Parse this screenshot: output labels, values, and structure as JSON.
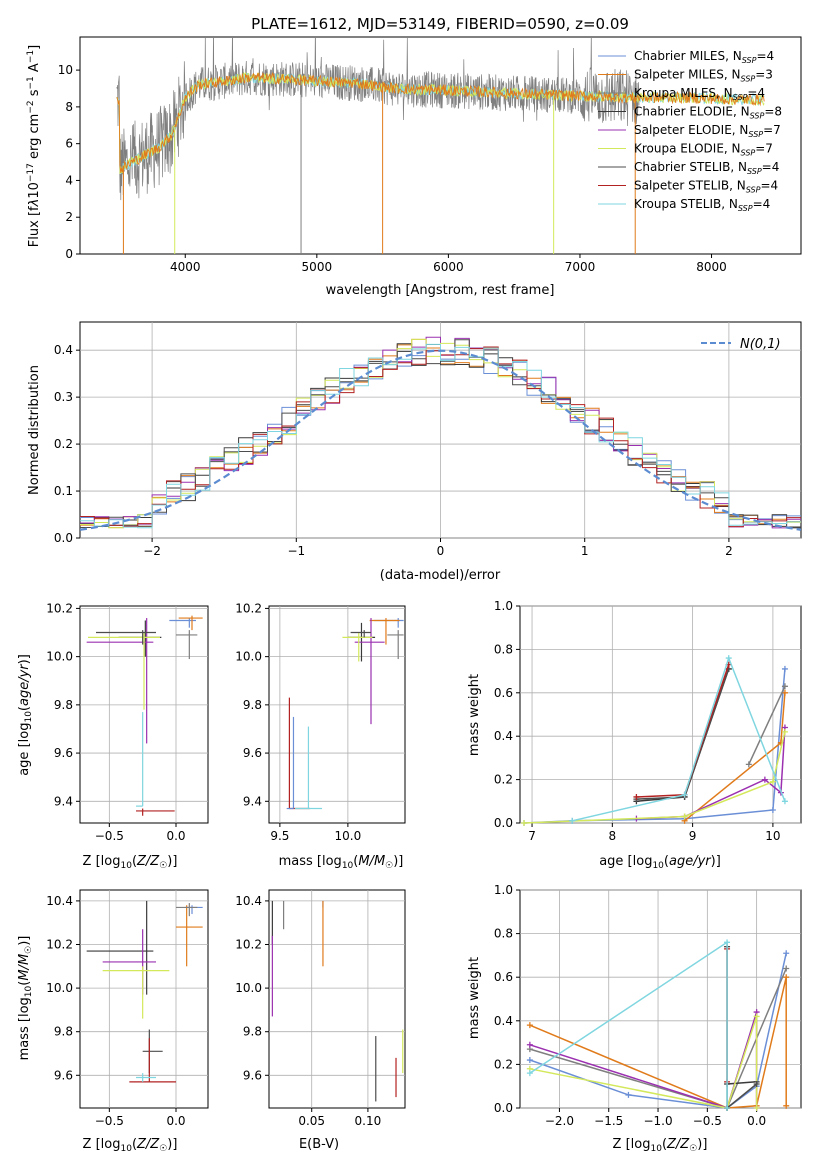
{
  "figure": {
    "title": "PLATE=1612, MJD=53149, FIBERID=0590, z=0.09",
    "series_names": [
      "Chabrier MILES",
      "Salpeter MILES",
      "Kroupa MILES",
      "Chabrier ELODIE",
      "Salpeter ELODIE",
      "Kroupa ELODIE",
      "Chabrier STELIB",
      "Salpeter STELIB",
      "Kroupa STELIB"
    ],
    "series_colors": [
      "#6b8fd6",
      "#e07b1b",
      "#7f7f7f",
      "#3a3a3a",
      "#9b30b0",
      "#d4e85b",
      "#4d4d4d",
      "#b22222",
      "#7fd6e0"
    ]
  },
  "chart_data": [
    {
      "id": "spectrum",
      "type": "line",
      "xlabel": "wavelength [Angstrom, rest frame]",
      "ylabel": "Flux [f_λ 10^-17 erg cm^-2 s^-1 A^-1]",
      "xlim": [
        3200,
        8680
      ],
      "ylim": [
        0,
        11.8
      ],
      "xticks": [
        4000,
        5000,
        6000,
        7000,
        8000
      ],
      "yticks": [
        0,
        2,
        4,
        6,
        8,
        10
      ],
      "legend_position": "top-right",
      "legend": [
        "Chabrier MILES, N_SSP=4",
        "Salpeter MILES, N_SSP=3",
        "Kroupa MILES, N_SSP=4",
        "Chabrier ELODIE, N_SSP=8",
        "Salpeter ELODIE, N_SSP=7",
        "Kroupa ELODIE, N_SSP=7",
        "Chabrier STELIB, N_SSP=4",
        "Salpeter STELIB, N_SSP=4",
        "Kroupa STELIB, N_SSP=4"
      ],
      "continuum_points": [
        [
          3500,
          4.6
        ],
        [
          3600,
          5.0
        ],
        [
          3700,
          5.4
        ],
        [
          3800,
          5.8
        ],
        [
          3900,
          6.5
        ],
        [
          4000,
          8.5
        ],
        [
          4100,
          9.2
        ],
        [
          4300,
          9.4
        ],
        [
          4500,
          9.6
        ],
        [
          4800,
          9.5
        ],
        [
          5000,
          9.4
        ],
        [
          5300,
          9.3
        ],
        [
          5600,
          9.0
        ],
        [
          6000,
          8.9
        ],
        [
          6300,
          8.8
        ],
        [
          6600,
          8.7
        ],
        [
          7000,
          8.6
        ],
        [
          7400,
          8.5
        ],
        [
          7800,
          8.5
        ],
        [
          8200,
          8.4
        ],
        [
          8400,
          8.4
        ]
      ]
    },
    {
      "id": "residuals",
      "type": "area",
      "xlabel": "(data-model)/error",
      "ylabel": "Normed distribution",
      "xlim": [
        -2.5,
        2.5
      ],
      "ylim": [
        0,
        0.46
      ],
      "xticks": [
        -2,
        -1,
        0,
        1,
        2
      ],
      "yticks": [
        0.0,
        0.1,
        0.2,
        0.3,
        0.4
      ],
      "legend_position": "top-right",
      "legend": [
        "N(0,1)"
      ],
      "bin_width": 0.1,
      "bin_start": -2.5
    },
    {
      "id": "age-vs-Z",
      "type": "scatter",
      "xlabel": "Z [log10(Z/Z☉)]",
      "ylabel": "age [log10(age/yr)]",
      "xlim": [
        -0.72,
        0.24
      ],
      "ylim": [
        9.31,
        10.21
      ],
      "xticks": [
        -0.5,
        0.0
      ],
      "yticks": [
        9.4,
        9.6,
        9.8,
        10.0,
        10.2
      ],
      "points": [
        {
          "x": 0.1,
          "y": 10.15,
          "xerr": [
            0.15,
            0.05
          ],
          "yerr": [
            0.03,
            0.01
          ]
        },
        {
          "x": 0.12,
          "y": 10.16,
          "xerr": [
            0.1,
            0.08
          ],
          "yerr": [
            0.05,
            0.01
          ]
        },
        {
          "x": 0.1,
          "y": 10.09,
          "xerr": [
            0.1,
            0.06
          ],
          "yerr": [
            0.1,
            0.02
          ]
        },
        {
          "x": -0.23,
          "y": 10.08,
          "xerr": [
            0.2,
            0.12
          ],
          "yerr": [
            0.08,
            0.07
          ]
        },
        {
          "x": -0.22,
          "y": 10.06,
          "xerr": [
            0.45,
            0.05
          ],
          "yerr": [
            0.42,
            0.1
          ]
        },
        {
          "x": -0.24,
          "y": 10.08,
          "xerr": [
            0.42,
            0.12
          ],
          "yerr": [
            0.3,
            0.02
          ]
        },
        {
          "x": -0.25,
          "y": 10.1,
          "xerr": [
            0.35,
            0.1
          ],
          "yerr": [
            0.05,
            0.01
          ]
        },
        {
          "x": -0.25,
          "y": 9.36,
          "xerr": [
            0.05,
            0.24
          ],
          "yerr": [
            0.02,
            0.01
          ]
        },
        {
          "x": -0.25,
          "y": 9.38,
          "xerr": [
            0.05,
            0.0
          ],
          "yerr": [
            0.0,
            0.39
          ]
        }
      ]
    },
    {
      "id": "age-vs-mass",
      "type": "scatter",
      "xlabel": "mass [log10(M/M☉)]",
      "ylabel": "",
      "xlim": [
        9.42,
        10.42
      ],
      "ylim": [
        9.31,
        10.21
      ],
      "xticks": [
        9.5,
        10.0
      ],
      "yticks": [
        9.4,
        9.6,
        9.8,
        10.0,
        10.2
      ],
      "points": [
        {
          "x": 10.37,
          "y": 10.15,
          "xerr": [
            0.18,
            0.04
          ],
          "yerr": [
            0.03,
            0.01
          ]
        },
        {
          "x": 10.28,
          "y": 10.15,
          "xerr": [
            0.12,
            0.1
          ],
          "yerr": [
            0.1,
            0.01
          ]
        },
        {
          "x": 10.37,
          "y": 10.09,
          "xerr": [
            0.08,
            0.04
          ],
          "yerr": [
            0.1,
            0.02
          ]
        },
        {
          "x": 10.1,
          "y": 10.08,
          "xerr": [
            0.1,
            0.1
          ],
          "yerr": [
            0.1,
            0.06
          ]
        },
        {
          "x": 10.17,
          "y": 10.06,
          "xerr": [
            0.12,
            0.1
          ],
          "yerr": [
            0.34,
            0.1
          ]
        },
        {
          "x": 10.08,
          "y": 10.08,
          "xerr": [
            0.12,
            0.1
          ],
          "yerr": [
            0.1,
            0.02
          ]
        },
        {
          "x": 10.12,
          "y": 10.1,
          "xerr": [
            0.1,
            0.05
          ],
          "yerr": [
            0.02,
            0.01
          ]
        },
        {
          "x": 9.57,
          "y": 9.37,
          "xerr": [
            0.0,
            0.15
          ],
          "yerr": [
            0.0,
            0.46
          ]
        },
        {
          "x": 9.71,
          "y": 9.37,
          "xerr": [
            0.1,
            0.1
          ],
          "yerr": [
            0.0,
            0.34
          ]
        },
        {
          "x": 9.6,
          "y": 9.37,
          "xerr": [
            0.05,
            0.0
          ],
          "yerr": [
            0.0,
            0.38
          ]
        }
      ]
    },
    {
      "id": "massweight-vs-age",
      "type": "line",
      "xlabel": "age [log10(age/yr)]",
      "ylabel": "mass weight",
      "xlim": [
        6.85,
        10.35
      ],
      "ylim": [
        0,
        1.0
      ],
      "xticks": [
        7,
        8,
        9,
        10
      ],
      "yticks": [
        0.0,
        0.2,
        0.4,
        0.6,
        0.8,
        1.0
      ],
      "series": [
        {
          "name": "Chabrier MILES",
          "points": [
            [
              6.9,
              0.0
            ],
            [
              7.5,
              0.01
            ],
            [
              8.9,
              0.02
            ],
            [
              10.0,
              0.06
            ],
            [
              10.15,
              0.71
            ]
          ]
        },
        {
          "name": "Salpeter MILES",
          "points": [
            [
              8.9,
              0.01
            ],
            [
              10.1,
              0.37
            ],
            [
              10.15,
              0.6
            ]
          ]
        },
        {
          "name": "Kroupa MILES",
          "points": [
            [
              9.7,
              0.27
            ],
            [
              10.15,
              0.63
            ]
          ]
        },
        {
          "name": "Chabrier ELODIE",
          "points": [
            [
              8.3,
              0.1
            ],
            [
              8.9,
              0.12
            ],
            [
              9.45,
              0.71
            ]
          ]
        },
        {
          "name": "Salpeter ELODIE",
          "points": [
            [
              8.3,
              0.02
            ],
            [
              8.9,
              0.03
            ],
            [
              9.9,
              0.2
            ],
            [
              10.1,
              0.14
            ],
            [
              10.15,
              0.44
            ]
          ]
        },
        {
          "name": "Kroupa ELODIE",
          "points": [
            [
              6.9,
              0.0
            ],
            [
              8.9,
              0.03
            ],
            [
              10.0,
              0.19
            ],
            [
              10.15,
              0.42
            ]
          ]
        },
        {
          "name": "Chabrier STELIB",
          "points": [
            [
              8.3,
              0.11
            ],
            [
              8.9,
              0.12
            ],
            [
              9.45,
              0.71
            ]
          ]
        },
        {
          "name": "Salpeter STELIB",
          "points": [
            [
              8.3,
              0.12
            ],
            [
              8.9,
              0.13
            ],
            [
              9.45,
              0.73
            ]
          ]
        },
        {
          "name": "Kroupa STELIB",
          "points": [
            [
              7.5,
              0.01
            ],
            [
              8.9,
              0.13
            ],
            [
              9.45,
              0.76
            ],
            [
              10.15,
              0.1
            ]
          ]
        }
      ]
    },
    {
      "id": "mass-vs-Z",
      "type": "scatter",
      "xlabel": "Z [log10(Z/Z☉)]",
      "ylabel": "mass [log10(M/M☉)]",
      "xlim": [
        -0.72,
        0.24
      ],
      "ylim": [
        9.45,
        10.45
      ],
      "xticks": [
        -0.5,
        0.0
      ],
      "yticks": [
        9.6,
        9.8,
        10.0,
        10.2,
        10.4
      ],
      "points": [
        {
          "x": 0.12,
          "y": 10.37,
          "xerr": [
            0.05,
            0.08
          ],
          "yerr": [
            0.03,
            0.01
          ]
        },
        {
          "x": 0.08,
          "y": 10.28,
          "xerr": [
            0.08,
            0.12
          ],
          "yerr": [
            0.18,
            0.1
          ]
        },
        {
          "x": 0.1,
          "y": 10.37,
          "xerr": [
            0.1,
            0.06
          ],
          "yerr": [
            0.04,
            0.02
          ]
        },
        {
          "x": -0.22,
          "y": 10.17,
          "xerr": [
            0.45,
            0.05
          ],
          "yerr": [
            0.2,
            0.23
          ]
        },
        {
          "x": -0.25,
          "y": 10.12,
          "xerr": [
            0.3,
            0.1
          ],
          "yerr": [
            0.15,
            0.15
          ]
        },
        {
          "x": -0.25,
          "y": 10.08,
          "xerr": [
            0.3,
            0.2
          ],
          "yerr": [
            0.22,
            0.02
          ]
        },
        {
          "x": -0.2,
          "y": 9.71,
          "xerr": [
            0.05,
            0.1
          ],
          "yerr": [
            0.1,
            0.1
          ]
        },
        {
          "x": -0.2,
          "y": 9.57,
          "xerr": [
            0.15,
            0.2
          ],
          "yerr": [
            0.0,
            0.2
          ]
        },
        {
          "x": -0.25,
          "y": 9.59,
          "xerr": [
            0.05,
            0.1
          ],
          "yerr": [
            0.02,
            0.02
          ]
        }
      ]
    },
    {
      "id": "mass-vs-EBV",
      "type": "scatter",
      "xlabel": "E(B-V)",
      "ylabel": "",
      "xlim": [
        0.012,
        0.133
      ],
      "ylim": [
        9.45,
        10.45
      ],
      "xticks": [
        0.05,
        0.1
      ],
      "yticks": [
        9.6,
        9.8,
        10.0,
        10.2,
        10.4
      ],
      "points": [
        {
          "x": 0.06,
          "y": 10.37,
          "yerr": [
            0.0,
            0.03
          ]
        },
        {
          "x": 0.06,
          "y": 10.28,
          "yerr": [
            0.18,
            0.12
          ]
        },
        {
          "x": 0.025,
          "y": 10.37,
          "yerr": [
            0.1,
            0.03
          ]
        },
        {
          "x": 0.015,
          "y": 10.3,
          "yerr": [
            0.1,
            0.1
          ]
        },
        {
          "x": 0.015,
          "y": 10.1,
          "yerr": [
            0.23,
            0.14
          ]
        },
        {
          "x": 0.131,
          "y": 9.71,
          "yerr": [
            0.1,
            0.1
          ]
        },
        {
          "x": 0.107,
          "y": 9.63,
          "yerr": [
            0.15,
            0.15
          ]
        },
        {
          "x": 0.125,
          "y": 9.6,
          "yerr": [
            0.1,
            0.08
          ]
        }
      ]
    },
    {
      "id": "massweight-vs-Z",
      "type": "line",
      "xlabel": "Z [log10(Z/Z☉)]",
      "ylabel": "mass weight",
      "xlim": [
        -2.4,
        0.45
      ],
      "ylim": [
        0,
        1.0
      ],
      "xticks": [
        -2.0,
        -1.5,
        -1.0,
        -0.5,
        0.0
      ],
      "yticks": [
        0.0,
        0.2,
        0.4,
        0.6,
        0.8,
        1.0
      ],
      "series": [
        {
          "name": "Chabrier MILES",
          "points": [
            [
              -2.3,
              0.22
            ],
            [
              -1.3,
              0.06
            ],
            [
              -0.3,
              0.0
            ],
            [
              0.0,
              0.1
            ],
            [
              0.3,
              0.71
            ]
          ]
        },
        {
          "name": "Salpeter MILES",
          "points": [
            [
              -2.3,
              0.38
            ],
            [
              -0.3,
              0.0
            ],
            [
              0.0,
              0.01
            ],
            [
              0.3,
              0.6
            ],
            [
              0.3,
              0.01
            ]
          ]
        },
        {
          "name": "Kroupa MILES",
          "points": [
            [
              -2.3,
              0.27
            ],
            [
              -0.3,
              0.0
            ],
            [
              0.3,
              0.64
            ]
          ]
        },
        {
          "name": "Chabrier ELODIE",
          "points": [
            [
              -0.3,
              0.11
            ],
            [
              0.0,
              0.12
            ]
          ]
        },
        {
          "name": "Salpeter ELODIE",
          "points": [
            [
              -2.3,
              0.29
            ],
            [
              -0.3,
              0.0
            ],
            [
              0.0,
              0.44
            ],
            [
              0.0,
              0.0
            ]
          ]
        },
        {
          "name": "Kroupa ELODIE",
          "points": [
            [
              -2.3,
              0.18
            ],
            [
              -0.3,
              0.0
            ],
            [
              0.0,
              0.42
            ],
            [
              0.0,
              0.0
            ]
          ]
        },
        {
          "name": "Chabrier STELIB",
          "points": [
            [
              -0.3,
              0.74
            ],
            [
              -0.3,
              0.0
            ],
            [
              0.0,
              0.11
            ]
          ]
        },
        {
          "name": "Salpeter STELIB",
          "points": [
            [
              -0.3,
              0.73
            ],
            [
              -0.3,
              0.12
            ]
          ]
        },
        {
          "name": "Kroupa STELIB",
          "points": [
            [
              -2.3,
              0.16
            ],
            [
              -0.3,
              0.76
            ],
            [
              -0.3,
              0.0
            ]
          ]
        }
      ]
    }
  ]
}
